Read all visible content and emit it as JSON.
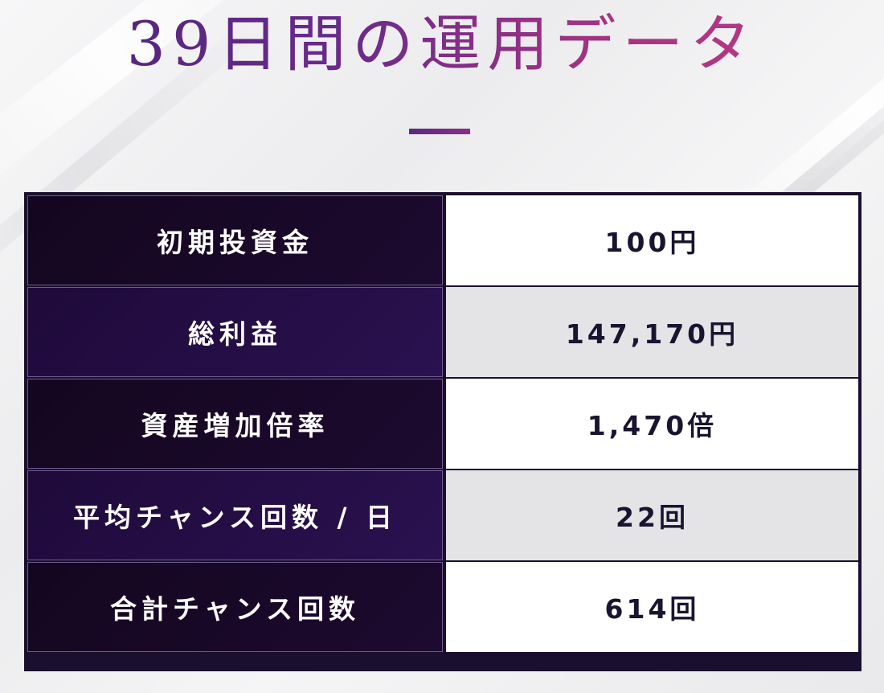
{
  "title": "39日間の運用データ",
  "colors": {
    "title_gradient_start": "#4a2578",
    "title_gradient_end": "#c03a86",
    "table_border": "#1a0f2e",
    "label_bg_dark": "#14061f",
    "label_bg_purple": "#2a1150",
    "value_bg_white": "#ffffff",
    "value_bg_gray": "#e4e4e6"
  },
  "table": {
    "rows": [
      {
        "label": "初期投資金",
        "value": "100円"
      },
      {
        "label": "総利益",
        "value": "147,170円"
      },
      {
        "label": "資産増加倍率",
        "value": "1,470倍"
      },
      {
        "label": "平均チャンス回数 / 日",
        "value": "22回"
      },
      {
        "label": "合計チャンス回数",
        "value": "614回"
      }
    ]
  }
}
